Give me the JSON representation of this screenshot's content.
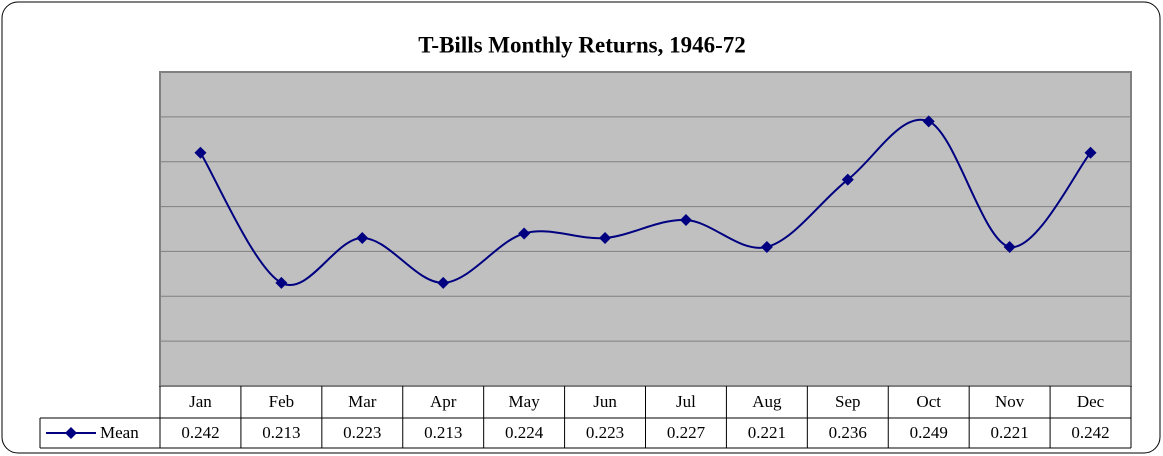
{
  "chart_data": {
    "type": "line",
    "title": "T-Bills Monthly Returns, 1946-72",
    "categories": [
      "Jan",
      "Feb",
      "Mar",
      "Apr",
      "May",
      "Jun",
      "Jul",
      "Aug",
      "Sep",
      "Oct",
      "Nov",
      "Dec"
    ],
    "series": [
      {
        "name": "Mean",
        "color": "#000080",
        "values": [
          0.242,
          0.213,
          0.223,
          0.213,
          0.224,
          0.223,
          0.227,
          0.221,
          0.236,
          0.249,
          0.221,
          0.242
        ]
      }
    ],
    "ylim": [
      0.19,
      0.26
    ],
    "yticks": [
      0.19,
      0.2,
      0.21,
      0.22,
      0.23,
      0.24,
      0.25,
      0.26
    ],
    "grid": true
  }
}
